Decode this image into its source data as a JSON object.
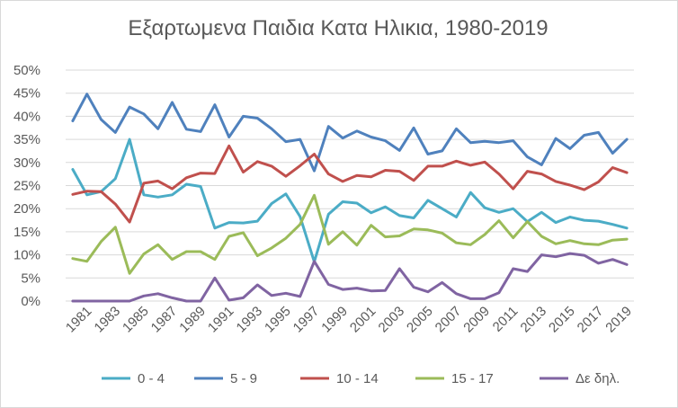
{
  "chart_data": {
    "type": "line",
    "title": "Εξαρτωμενα Παιδια Κατα Ηλικια, 1980-2019",
    "xlabel": "",
    "ylabel": "",
    "ylim": [
      0,
      50
    ],
    "y_ticks": [
      "0%",
      "5%",
      "10%",
      "15%",
      "20%",
      "25%",
      "30%",
      "35%",
      "40%",
      "45%",
      "50%"
    ],
    "y_tick_values": [
      0,
      5,
      10,
      15,
      20,
      25,
      30,
      35,
      40,
      45,
      50
    ],
    "x": [
      1980,
      1981,
      1982,
      1983,
      1984,
      1985,
      1986,
      1987,
      1988,
      1989,
      1990,
      1991,
      1992,
      1993,
      1994,
      1995,
      1996,
      1997,
      1998,
      1999,
      2000,
      2001,
      2002,
      2003,
      2004,
      2005,
      2006,
      2007,
      2008,
      2009,
      2010,
      2011,
      2012,
      2013,
      2014,
      2015,
      2016,
      2017,
      2018,
      2019
    ],
    "x_tick_labels": [
      "1981",
      "1983",
      "1985",
      "1987",
      "1989",
      "1991",
      "1993",
      "1995",
      "1997",
      "1999",
      "2001",
      "2003",
      "2005",
      "2007",
      "2009",
      "2011",
      "2013",
      "2015",
      "2017",
      "2019"
    ],
    "grid": true,
    "legend_position": "bottom",
    "series": [
      {
        "name": "0 - 4",
        "color": "#4bacc6",
        "values": [
          28.5,
          23,
          23.7,
          26.5,
          35,
          23,
          22.5,
          23,
          25.3,
          24.8,
          15.8,
          17,
          16.9,
          17.3,
          21.1,
          23.2,
          18.3,
          8.5,
          18.8,
          21.5,
          21.2,
          19.1,
          20.4,
          18.5,
          18,
          21.8,
          20,
          18.2,
          23.5,
          20.2,
          19.2,
          20,
          17.2,
          19.2,
          17,
          18.2,
          17.5,
          17.3,
          16.6,
          15.8
        ]
      },
      {
        "name": "5 - 9",
        "color": "#4f81bd",
        "values": [
          39,
          44.8,
          39.3,
          36.5,
          42,
          40.5,
          37.3,
          43,
          37.2,
          36.7,
          42.5,
          35.5,
          40,
          39.6,
          37.3,
          34.5,
          35,
          28.2,
          37.8,
          35.3,
          36.8,
          35.5,
          34.7,
          32.6,
          37.5,
          31.8,
          32.5,
          37.3,
          34.3,
          34.6,
          34.3,
          34.7,
          31.2,
          29.5,
          35.2,
          33,
          35.9,
          36.5,
          32,
          35
        ]
      },
      {
        "name": "10 - 14",
        "color": "#c0504d",
        "values": [
          23.1,
          23.8,
          23.7,
          21,
          17.1,
          25.5,
          26,
          24.3,
          26.7,
          27.7,
          27.6,
          33.6,
          27.9,
          30.2,
          29.2,
          27,
          29.3,
          31.8,
          27.5,
          25.9,
          27.2,
          26.9,
          28.3,
          28.1,
          26.1,
          29.2,
          29.2,
          30.3,
          29.4,
          30.1,
          27.5,
          24.3,
          28.1,
          27.5,
          25.9,
          25.1,
          24.1,
          25.8,
          28.9,
          27.8
        ]
      },
      {
        "name": "15 - 17",
        "color": "#9bbb59",
        "values": [
          9.2,
          8.6,
          12.9,
          16,
          6,
          10.2,
          12.2,
          9,
          10.7,
          10.7,
          9,
          14,
          14.8,
          9.8,
          11.5,
          13.6,
          16.6,
          22.9,
          12.3,
          15,
          12.1,
          16.4,
          13.9,
          14.1,
          15.6,
          15.4,
          14.7,
          12.6,
          12.2,
          14.4,
          17.4,
          13.7,
          17.2,
          14,
          12.4,
          13.1,
          12.4,
          12.2,
          13.2,
          13.4
        ]
      },
      {
        "name": "Δε δηλ.",
        "color": "#8064a2",
        "values": [
          0,
          0,
          0,
          0,
          0,
          1.1,
          1.6,
          0.7,
          0,
          0,
          5,
          0.2,
          0.7,
          3.5,
          1.2,
          1.7,
          1,
          8.6,
          3.6,
          2.5,
          2.8,
          2.2,
          2.3,
          7,
          3,
          2,
          4,
          1.6,
          0.5,
          0.5,
          1.8,
          7,
          6.4,
          10,
          9.6,
          10.3,
          9.9,
          8.2,
          9,
          7.9
        ]
      }
    ]
  }
}
